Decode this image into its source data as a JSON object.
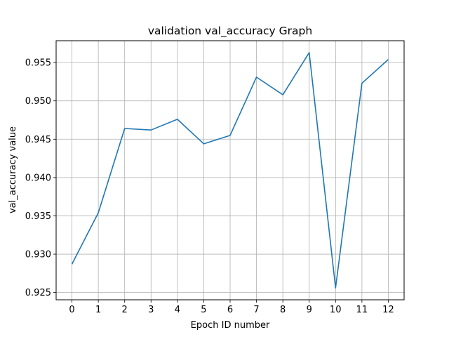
{
  "chart_data": {
    "type": "line",
    "title": "validation val_accuracy Graph",
    "xlabel": "Epoch ID number",
    "ylabel": "val_accuracy value",
    "x": [
      0,
      1,
      2,
      3,
      4,
      5,
      6,
      7,
      8,
      9,
      10,
      11,
      12
    ],
    "series": [
      {
        "values": [
          0.9287,
          0.9354,
          0.9464,
          0.9462,
          0.9476,
          0.9444,
          0.9455,
          0.9531,
          0.9508,
          0.9563,
          0.9256,
          0.9523,
          0.9554
        ],
        "color": "#1f77b4"
      }
    ],
    "xticks": [
      "0",
      "1",
      "2",
      "3",
      "4",
      "5",
      "6",
      "7",
      "8",
      "9",
      "10",
      "11",
      "12"
    ],
    "yticks": [
      "0.925",
      "0.930",
      "0.935",
      "0.940",
      "0.945",
      "0.950",
      "0.955"
    ],
    "xlim": [
      -0.6,
      12.6
    ],
    "ylim": [
      0.92405,
      0.95785
    ],
    "grid": true
  }
}
